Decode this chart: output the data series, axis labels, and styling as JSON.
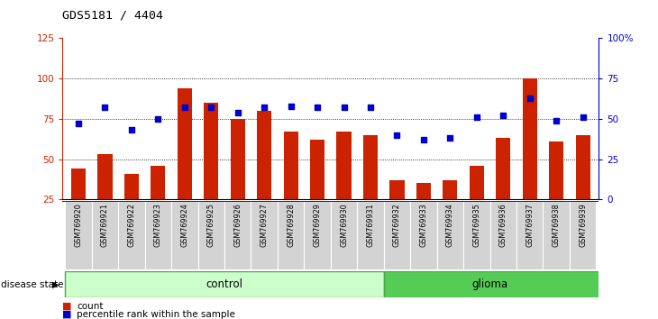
{
  "title": "GDS5181 / 4404",
  "samples": [
    "GSM769920",
    "GSM769921",
    "GSM769922",
    "GSM769923",
    "GSM769924",
    "GSM769925",
    "GSM769926",
    "GSM769927",
    "GSM769928",
    "GSM769929",
    "GSM769930",
    "GSM769931",
    "GSM769932",
    "GSM769933",
    "GSM769934",
    "GSM769935",
    "GSM769936",
    "GSM769937",
    "GSM769938",
    "GSM769939"
  ],
  "bar_values": [
    44,
    53,
    41,
    46,
    94,
    85,
    75,
    80,
    67,
    62,
    67,
    65,
    37,
    35,
    37,
    46,
    63,
    100,
    61,
    65
  ],
  "dot_pct": [
    47,
    57,
    43,
    50,
    57,
    57,
    54,
    57,
    58,
    57,
    57,
    57,
    40,
    37,
    38,
    51,
    52,
    63,
    49,
    51
  ],
  "control_count": 12,
  "glioma_count": 8,
  "bar_color": "#cc2200",
  "dot_color": "#0000cc",
  "left_ylim": [
    25,
    125
  ],
  "right_ylim": [
    0,
    100
  ],
  "left_yticks": [
    25,
    50,
    75,
    100,
    125
  ],
  "right_yticks": [
    0,
    25,
    50,
    75,
    100
  ],
  "right_yticklabels": [
    "0",
    "25",
    "50",
    "75",
    "100%"
  ],
  "grid_values": [
    50,
    75,
    100
  ],
  "bg_color": "#d3d3d3",
  "control_color": "#ccffcc",
  "glioma_color": "#55cc55",
  "legend_count_label": "count",
  "legend_pct_label": "percentile rank within the sample"
}
